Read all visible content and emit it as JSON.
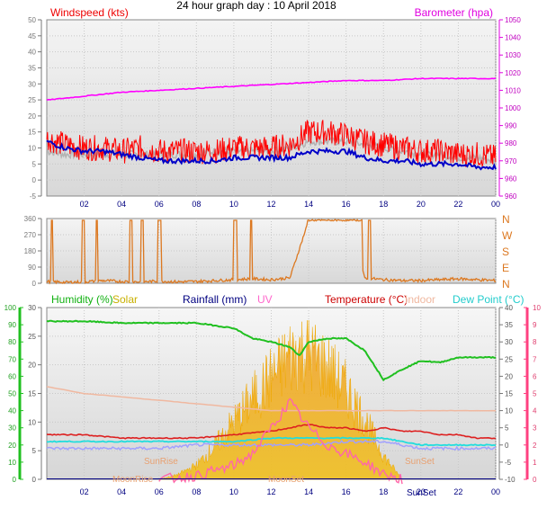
{
  "title": "24 hour graph day : 10 April 2018",
  "colors": {
    "wind": "#ff0000",
    "gust_grey": "#b4b4b4",
    "wind_avg": "#0000c8",
    "baro": "#ff00ff",
    "dir": "#dc7820",
    "humidity": "#20c020",
    "solar": "#f0b400",
    "rain": "#000080",
    "uv": "#ff66aa",
    "temp": "#dd2020",
    "indoor": "#f0b8a0",
    "dew": "#22dddd",
    "extra": "#a0a0ff",
    "axis_left": "#20c020",
    "axis_right": "#ff4080"
  },
  "time_ticks": [
    "02",
    "04",
    "06",
    "08",
    "10",
    "12",
    "14",
    "16",
    "18",
    "20",
    "22",
    "00"
  ],
  "panel1": {
    "legend_left": "Windspeed (kts)",
    "legend_right": "Barometer (hpa)",
    "ylim_left": [
      -5,
      50
    ],
    "ylim_right": [
      960,
      1050
    ],
    "left_ticks": [
      "50",
      "45",
      "40",
      "35",
      "30",
      "25",
      "20",
      "15",
      "10",
      "5",
      "0",
      "-5"
    ],
    "right_ticks": [
      "1050",
      "1040",
      "1030",
      "1020",
      "1010",
      "1000",
      "990",
      "980",
      "970",
      "960",
      "960"
    ]
  },
  "panel2": {
    "left_ticks": [
      "360",
      "270",
      "180",
      "90",
      "0"
    ],
    "right_letters": [
      "N",
      "W",
      "S",
      "E",
      "N"
    ]
  },
  "panel3": {
    "legend": {
      "humidity": "Humidity (%)",
      "solar": "Solar",
      "rainfall": "Rainfall (mm)",
      "uv": "UV",
      "temperature": "Temperature (°C)",
      "indoor": "Indoor",
      "dewpoint": "Dew Point (°C)"
    },
    "outer_left_ticks": [
      "100",
      "90",
      "80",
      "70",
      "60",
      "50",
      "40",
      "30",
      "20",
      "10",
      "0"
    ],
    "inner_left_ticks": [
      "30",
      "25",
      "20",
      "15",
      "10",
      "5",
      "0"
    ],
    "inner_right_ticks": [
      "40",
      "35",
      "30",
      "25",
      "20",
      "15",
      "10",
      "5",
      "0",
      "-5",
      "-10"
    ],
    "outer_right_ticks": [
      "10",
      "9",
      "8",
      "7",
      "6",
      "5",
      "4",
      "3",
      "2",
      "1",
      "0"
    ],
    "annotations": {
      "sunrise": "SunRise",
      "sunset": "SunSet",
      "moonrise": "MoonRise",
      "moonset": "MoonSet",
      "x_sunset": "SunSet"
    }
  },
  "chart_data": [
    {
      "type": "line",
      "title": "24 hour graph day : 10 April 2018",
      "xlabel": "",
      "ylabel": "Windspeed (kts)",
      "x_unit": "hour",
      "xlim": [
        0,
        24
      ],
      "ylim": [
        -5,
        50
      ],
      "ylim_secondary": [
        960,
        1050
      ],
      "grid": true,
      "series": [
        {
          "name": "Windspeed (kts)",
          "axis": "left",
          "x": [
            0,
            1,
            2,
            3,
            4,
            5,
            6,
            7,
            8,
            9,
            10,
            11,
            12,
            13,
            14,
            15,
            16,
            17,
            18,
            19,
            20,
            21,
            22,
            23,
            24
          ],
          "y": [
            13,
            11,
            10,
            10,
            9,
            10,
            9,
            9,
            9,
            9,
            10,
            10,
            10,
            11,
            15,
            15,
            14,
            12,
            11,
            10,
            9,
            9,
            8,
            8,
            7
          ]
        },
        {
          "axis": "left",
          "x": [
            0,
            1,
            2,
            3,
            4,
            5,
            6,
            7,
            8,
            9,
            10,
            11,
            12,
            13,
            14,
            15,
            16,
            17,
            18,
            19,
            20,
            21,
            22,
            23,
            24
          ],
          "y": [
            9,
            8,
            8,
            8,
            8,
            8,
            8,
            8,
            8,
            9,
            9,
            9,
            9,
            10,
            12,
            12,
            12,
            11,
            10,
            9,
            8,
            8,
            7,
            7,
            6
          ]
        },
        {
          "axis": "left",
          "x": [
            0,
            1,
            2,
            3,
            4,
            5,
            6,
            7,
            8,
            9,
            10,
            11,
            12,
            13,
            14,
            15,
            16,
            17,
            18,
            19,
            20,
            21,
            22,
            23,
            24
          ],
          "y": [
            12,
            10,
            9,
            9,
            8,
            7,
            6,
            6,
            6,
            6,
            7,
            7,
            7,
            7,
            9,
            9,
            9,
            7,
            6,
            6,
            5,
            5,
            5,
            4,
            4
          ]
        },
        {
          "name": "Barometer (hpa)",
          "axis": "right",
          "x": [
            0,
            2,
            4,
            6,
            8,
            10,
            12,
            14,
            16,
            18,
            20,
            22,
            24
          ],
          "y": [
            1009,
            1011,
            1013,
            1014,
            1015,
            1016,
            1017,
            1018,
            1019,
            1019,
            1020,
            1020,
            1020
          ]
        }
      ]
    },
    {
      "type": "scatter",
      "title": "",
      "xlabel": "",
      "ylabel": "",
      "x_unit": "hour",
      "xlim": [
        0,
        24
      ],
      "ylim": [
        0,
        360
      ],
      "grid": true,
      "series": [
        {
          "x": [
            0,
            1,
            2,
            3,
            4,
            5,
            6,
            7,
            8,
            9,
            10,
            11,
            12,
            13,
            14,
            15,
            16,
            17,
            18,
            19,
            20,
            21,
            22,
            23,
            24
          ],
          "y": [
            10,
            5,
            8,
            15,
            10,
            8,
            12,
            8,
            10,
            15,
            20,
            25,
            20,
            30,
            350,
            350,
            350,
            30,
            20,
            15,
            15,
            20,
            25,
            20,
            15
          ]
        }
      ]
    },
    {
      "type": "area",
      "title": "",
      "xlabel": "",
      "ylabel": "",
      "x_unit": "hour",
      "xlim": [
        0,
        24
      ],
      "grid": true,
      "series": [
        {
          "name": "Humidity (%)",
          "axis": "left_outer",
          "x": [
            0,
            2,
            4,
            6,
            8,
            10,
            10.5,
            11,
            12,
            13,
            13.5,
            14,
            15,
            16,
            17,
            18,
            19,
            20,
            21,
            22,
            23,
            24
          ],
          "y": [
            92,
            92,
            91,
            91,
            91,
            88,
            85,
            82,
            80,
            77,
            72,
            80,
            82,
            82,
            75,
            58,
            64,
            69,
            68,
            71,
            71,
            71
          ]
        },
        {
          "name": "Temperature (°C)",
          "axis": "right_inner",
          "x": [
            0,
            2,
            4,
            6,
            8,
            10,
            12,
            13,
            14,
            15,
            16,
            17,
            18,
            19,
            20,
            21,
            22,
            23,
            24
          ],
          "y": [
            3,
            3,
            2,
            2,
            2,
            3,
            4,
            5,
            6,
            5,
            5,
            4,
            5,
            4,
            4,
            3,
            3,
            2,
            2
          ]
        },
        {
          "name": "Indoor",
          "axis": "right_inner",
          "x": [
            0,
            2,
            4,
            6,
            8,
            10,
            12,
            14,
            16,
            18,
            20,
            22,
            24
          ],
          "y": [
            17,
            15,
            14,
            13,
            12,
            11,
            10,
            10,
            10,
            10,
            10,
            10,
            10
          ]
        },
        {
          "name": "Dew Point (°C)",
          "axis": "right_inner",
          "x": [
            0,
            2,
            4,
            6,
            8,
            10,
            12,
            14,
            16,
            18,
            20,
            22,
            24
          ],
          "y": [
            1,
            1,
            1,
            1,
            1,
            1,
            2,
            2,
            2,
            2,
            0,
            0,
            0
          ]
        },
        {
          "axis": "right_inner",
          "x": [
            0,
            2,
            4,
            6,
            8,
            10,
            12,
            14,
            16,
            18,
            20,
            22,
            24
          ],
          "y": [
            -1,
            -1,
            -1,
            -1,
            0,
            0,
            0,
            0,
            1,
            1,
            -1,
            -1,
            -1
          ]
        },
        {
          "name": "Solar",
          "axis": "hidden",
          "x": [
            6,
            7,
            8,
            9,
            10,
            11,
            12,
            12.5,
            13,
            13.5,
            14,
            15,
            16,
            17,
            18,
            19
          ],
          "y": [
            0,
            20,
            60,
            140,
            240,
            340,
            430,
            470,
            520,
            540,
            530,
            470,
            380,
            250,
            100,
            0
          ]
        },
        {
          "name": "UV",
          "axis": "right_outer",
          "x": [
            6,
            8,
            10,
            11,
            12,
            13,
            14,
            15,
            16,
            17,
            18,
            19
          ],
          "y": [
            0,
            0.2,
            0.8,
            1.5,
            3,
            4.5,
            3,
            2,
            1.5,
            1,
            0.3,
            0
          ]
        },
        {
          "name": "Rainfall (mm)",
          "axis": "left_inner",
          "x": [
            0,
            24
          ],
          "y": [
            0,
            0
          ]
        }
      ]
    }
  ]
}
